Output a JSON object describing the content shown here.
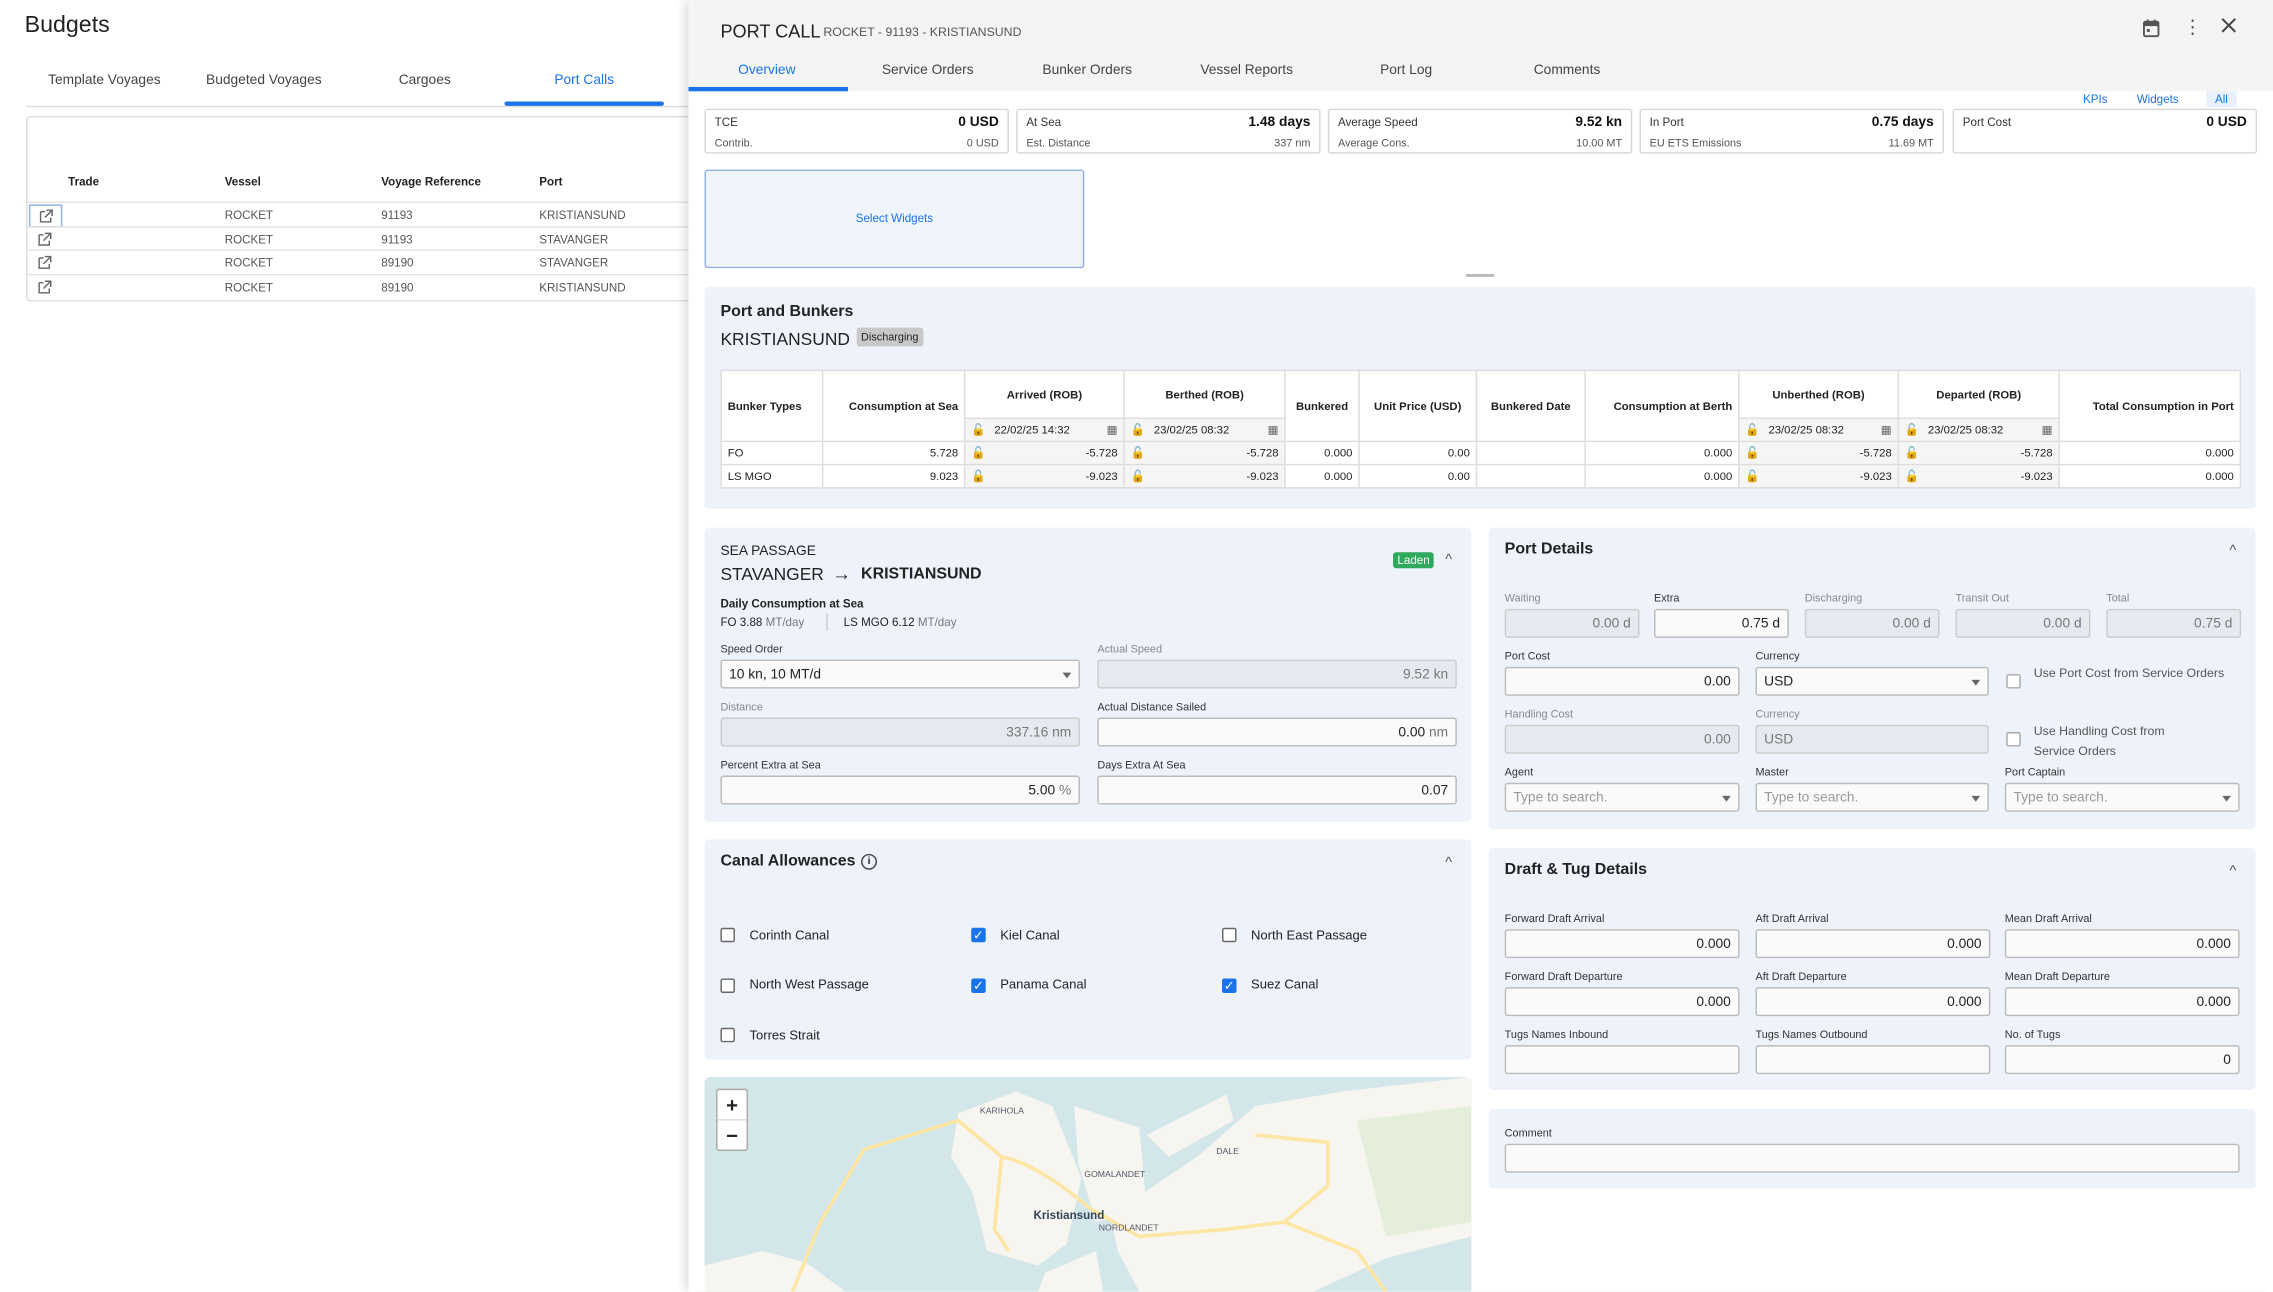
{
  "left": {
    "title": "Budgets",
    "tabs": [
      {
        "label": "Template Voyages"
      },
      {
        "label": "Budgeted Voyages"
      },
      {
        "label": "Cargoes"
      },
      {
        "label": "Port Calls",
        "active": true
      }
    ],
    "table": {
      "columns": [
        "Trade",
        "Vessel",
        "Voyage Reference",
        "Port"
      ],
      "rows": [
        {
          "trade": "",
          "vessel": "ROCKET",
          "voyage": "91193",
          "port": "KRISTIANSUND"
        },
        {
          "trade": "",
          "vessel": "ROCKET",
          "voyage": "91193",
          "port": "STAVANGER"
        },
        {
          "trade": "",
          "vessel": "ROCKET",
          "voyage": "89190",
          "port": "STAVANGER"
        },
        {
          "trade": "",
          "vessel": "ROCKET",
          "voyage": "89190",
          "port": "KRISTIANSUND"
        }
      ]
    }
  },
  "panel": {
    "title": "PORT CALL",
    "subtitle": "ROCKET - 91193 - KRISTIANSUND",
    "icons": [
      "calendar-icon",
      "more-vert-icon",
      "close-icon"
    ],
    "tabs": [
      "Overview",
      "Service Orders",
      "Bunker Orders",
      "Vessel Reports",
      "Port Log",
      "Comments"
    ],
    "active_tab": "Overview",
    "view_toggle": [
      "KPIs",
      "Widgets",
      "All"
    ],
    "kpis": [
      {
        "l1": "TCE",
        "v1": "0 USD",
        "l2": "Contrib.",
        "v2": "0 USD"
      },
      {
        "l1": "At Sea",
        "v1": "1.48 days",
        "l2": "Est. Distance",
        "v2": "337 nm"
      },
      {
        "l1": "Average Speed",
        "v1": "9.52 kn",
        "l2": "Average Cons.",
        "v2": "10.00 MT"
      },
      {
        "l1": "In Port",
        "v1": "0.75 days",
        "l2": "EU ETS Emissions",
        "v2": "11.69 MT"
      },
      {
        "l1": "Port Cost",
        "v1": "0 USD",
        "l2": "",
        "v2": ""
      }
    ],
    "select_widgets": "Select Widgets"
  },
  "bunkers": {
    "title": "Port and Bunkers",
    "port": "KRISTIANSUND",
    "status": "Discharging",
    "columns": [
      "Bunker Types",
      "Consumption at Sea",
      "Arrived (ROB)",
      "Berthed (ROB)",
      "Bunkered",
      "Unit Price (USD)",
      "Bunkered Date",
      "Consumption at Berth",
      "Unberthed (ROB)",
      "Departed (ROB)",
      "Total Consumption in Port"
    ],
    "dates": {
      "arrived": "22/02/25 14:32",
      "berthed": "23/02/25 08:32",
      "unberthed": "23/02/25 08:32",
      "departed": "23/02/25 08:32"
    },
    "rows": [
      [
        "FO",
        "5.728",
        "-5.728",
        "-5.728",
        "0.000",
        "0.00",
        "",
        "0.000",
        "-5.728",
        "-5.728",
        "0.000"
      ],
      [
        "LS MGO",
        "9.023",
        "-9.023",
        "-9.023",
        "0.000",
        "0.00",
        "",
        "0.000",
        "-9.023",
        "-9.023",
        "0.000"
      ]
    ]
  },
  "sea_passage": {
    "heading": "SEA PASSAGE",
    "from": "STAVANGER",
    "to": "KRISTIANSUND",
    "badge": "Laden",
    "daily_label": "Daily Consumption at Sea",
    "fo": "FO 3.88",
    "fo_unit": "MT/day",
    "lsmgo": "LS MGO 6.12",
    "lsmgo_unit": "MT/day",
    "speed_order_label": "Speed Order",
    "speed_order": "10 kn, 10 MT/d",
    "actual_speed_label": "Actual Speed",
    "actual_speed": "9.52",
    "actual_speed_unit": "kn",
    "distance_label": "Distance",
    "distance": "337.16",
    "distance_unit": "nm",
    "actual_distance_label": "Actual Distance Sailed",
    "actual_distance": "0.00",
    "actual_distance_unit": "nm",
    "percent_extra_label": "Percent Extra at Sea",
    "percent_extra": "5.00",
    "percent_unit": "%",
    "days_extra_label": "Days Extra At Sea",
    "days_extra": "0.07"
  },
  "port_details": {
    "title": "Port Details",
    "times": [
      {
        "label": "Waiting",
        "value": "0.00",
        "unit": "d",
        "disabled": true
      },
      {
        "label": "Extra",
        "value": "0.75",
        "unit": "d",
        "disabled": false
      },
      {
        "label": "Discharging",
        "value": "0.00",
        "unit": "d",
        "disabled": true
      },
      {
        "label": "Transit Out",
        "value": "0.00",
        "unit": "d",
        "disabled": true
      },
      {
        "label": "Total",
        "value": "0.75",
        "unit": "d",
        "disabled": true
      }
    ],
    "port_cost_label": "Port Cost",
    "port_cost": "0.00",
    "currency_label": "Currency",
    "currency": "USD",
    "use_port_cost": "Use Port Cost from Service Orders",
    "use_port_cost_checked": false,
    "handling_cost_label": "Handling Cost",
    "handling_cost": "0.00",
    "handling_currency_label": "Currency",
    "handling_currency": "USD",
    "use_handling_cost": "Use Handling Cost from Service Orders",
    "use_handling_cost_checked": false,
    "agent_label": "Agent",
    "master_label": "Master",
    "captain_label": "Port Captain",
    "search_placeholder": "Type to search."
  },
  "canals": {
    "title": "Canal Allowances",
    "items": [
      {
        "label": "Corinth Canal",
        "checked": false
      },
      {
        "label": "Kiel Canal",
        "checked": true
      },
      {
        "label": "North East Passage",
        "checked": false
      },
      {
        "label": "North West Passage",
        "checked": false
      },
      {
        "label": "Panama Canal",
        "checked": true
      },
      {
        "label": "Suez Canal",
        "checked": true
      },
      {
        "label": "Torres Strait",
        "checked": false
      }
    ]
  },
  "draft": {
    "title": "Draft & Tug Details",
    "fields": [
      {
        "label": "Forward Draft Arrival",
        "value": "0.000"
      },
      {
        "label": "Aft Draft Arrival",
        "value": "0.000"
      },
      {
        "label": "Mean Draft Arrival",
        "value": "0.000"
      },
      {
        "label": "Forward Draft Departure",
        "value": "0.000"
      },
      {
        "label": "Aft Draft Departure",
        "value": "0.000"
      },
      {
        "label": "Mean Draft Departure",
        "value": "0.000"
      },
      {
        "label": "Tugs Names Inbound",
        "value": ""
      },
      {
        "label": "Tugs Names Outbound",
        "value": ""
      },
      {
        "label": "No. of Tugs",
        "value": "0"
      }
    ]
  },
  "comment": {
    "label": "Comment",
    "value": ""
  },
  "map": {
    "zoom_in": "+",
    "zoom_out": "−",
    "labels": [
      "KARIHOLA",
      "GOMALANDET",
      "DALE",
      "Kristiansund",
      "NORDLANDET"
    ],
    "colors": {
      "water": "#d3e6ea",
      "land": "#f7f5f0",
      "road": "#fde6a4",
      "park": "#e4eedb"
    }
  },
  "colors": {
    "accent": "#1a73e8",
    "laden": "#2ea85a",
    "section_bg": "#eef3fb"
  }
}
